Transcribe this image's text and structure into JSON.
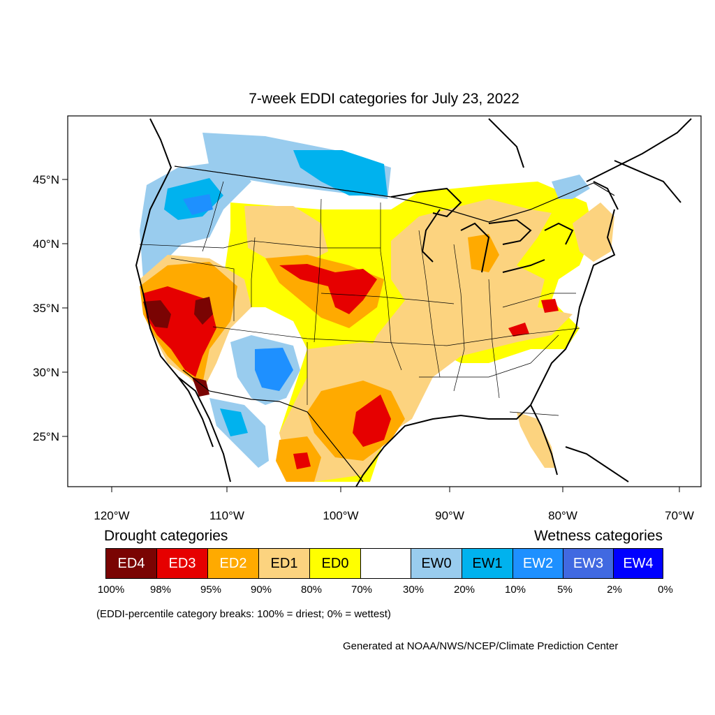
{
  "title": "7-week EDDI categories for July 23, 2022",
  "lat_labels": [
    "45°N",
    "40°N",
    "35°N",
    "30°N",
    "25°N"
  ],
  "lon_labels": [
    "120°W",
    "110°W",
    "100°W",
    "90°W",
    "80°W",
    "70°W"
  ],
  "legend": {
    "drought_heading": "Drought categories",
    "wetness_heading": "Wetness categories",
    "categories": [
      {
        "label": "ED4",
        "color": "#7a0403",
        "text_color": "#ffffff"
      },
      {
        "label": "ED3",
        "color": "#e60000",
        "text_color": "#ffffff"
      },
      {
        "label": "ED2",
        "color": "#ffaa00",
        "text_color": "#ffffff"
      },
      {
        "label": "ED1",
        "color": "#fcd37f",
        "text_color": "#000000"
      },
      {
        "label": "ED0",
        "color": "#ffff00",
        "text_color": "#000000"
      },
      {
        "label": "",
        "color": "#ffffff",
        "text_color": "#000000"
      },
      {
        "label": "EW0",
        "color": "#99ccee",
        "text_color": "#000000"
      },
      {
        "label": "EW1",
        "color": "#00b2ee",
        "text_color": "#000000"
      },
      {
        "label": "EW2",
        "color": "#1e90ff",
        "text_color": "#ffffff"
      },
      {
        "label": "EW3",
        "color": "#4169e1",
        "text_color": "#ffffff"
      },
      {
        "label": "EW4",
        "color": "#0000ff",
        "text_color": "#ffffff"
      }
    ],
    "ticks": [
      "100%",
      "98%",
      "95%",
      "90%",
      "80%",
      "70%",
      "30%",
      "20%",
      "10%",
      "5%",
      "2%",
      "0%"
    ]
  },
  "note": "(EDDI-percentile category breaks: 100% = driest; 0% = wettest)",
  "credit": "Generated at NOAA/NWS/NCEP/Climate Prediction Center"
}
